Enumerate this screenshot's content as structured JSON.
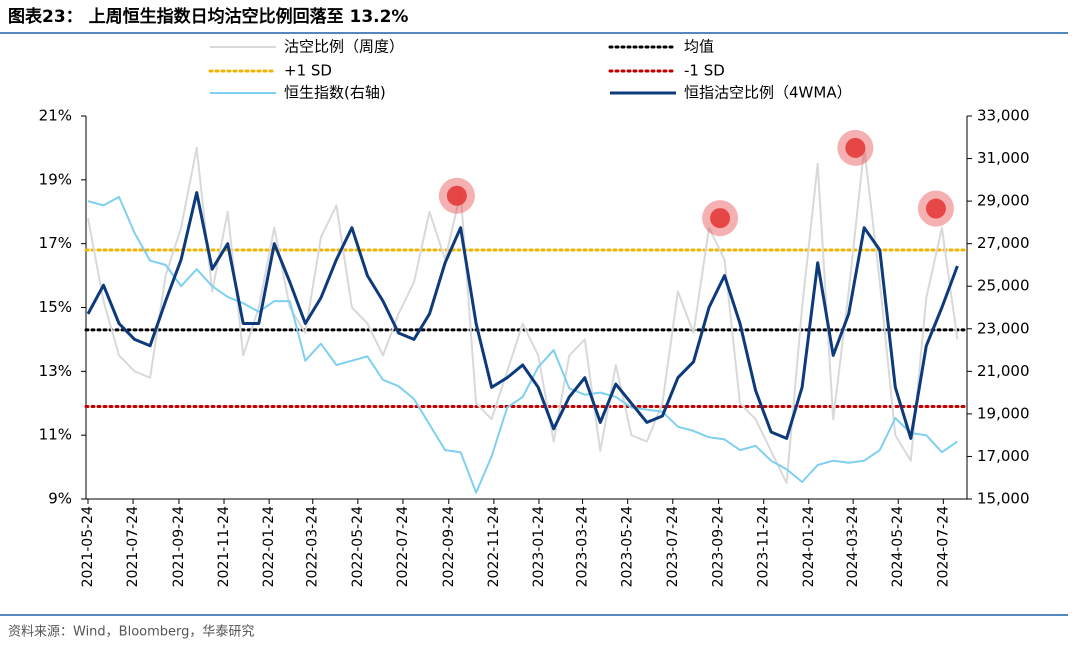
{
  "chart_data": {
    "type": "line",
    "title": "图表23： 上周恒生指数日均沽空比例回落至 13.2%",
    "source": "资料来源：Wind，Bloomberg，华泰研究",
    "x": [
      "2021-05-24",
      "2021-06-14",
      "2021-07-05",
      "2021-07-26",
      "2021-08-16",
      "2021-09-06",
      "2021-09-27",
      "2021-10-18",
      "2021-11-08",
      "2021-11-29",
      "2021-12-20",
      "2022-01-10",
      "2022-01-31",
      "2022-02-21",
      "2022-03-14",
      "2022-04-04",
      "2022-04-25",
      "2022-05-16",
      "2022-06-06",
      "2022-06-27",
      "2022-07-18",
      "2022-08-08",
      "2022-08-29",
      "2022-09-19",
      "2022-10-10",
      "2022-10-31",
      "2022-11-21",
      "2022-12-12",
      "2023-01-02",
      "2023-01-23",
      "2023-02-13",
      "2023-03-06",
      "2023-03-27",
      "2023-04-17",
      "2023-05-08",
      "2023-05-29",
      "2023-06-19",
      "2023-07-10",
      "2023-07-31",
      "2023-08-21",
      "2023-09-11",
      "2023-10-02",
      "2023-10-23",
      "2023-11-13",
      "2023-12-04",
      "2023-12-25",
      "2024-01-15",
      "2024-02-05",
      "2024-02-26",
      "2024-03-18",
      "2024-04-08",
      "2024-04-29",
      "2024-05-20",
      "2024-06-10",
      "2024-07-01",
      "2024-07-22",
      "2024-08-12"
    ],
    "xlim": [
      "2021-05-24",
      "2024-08-25"
    ],
    "xticks": [
      "2021-05-24",
      "2021-07-24",
      "2021-09-24",
      "2021-11-24",
      "2022-01-24",
      "2022-03-24",
      "2022-05-24",
      "2022-07-24",
      "2022-09-24",
      "2022-11-24",
      "2023-01-24",
      "2023-03-24",
      "2023-05-24",
      "2023-07-24",
      "2023-09-24",
      "2023-11-24",
      "2024-01-24",
      "2024-03-24",
      "2024-05-24",
      "2024-07-24"
    ],
    "ylim": [
      9,
      21
    ],
    "yticks": [
      {
        "value": 9,
        "label": "9%"
      },
      {
        "value": 11,
        "label": "11%"
      },
      {
        "value": 13,
        "label": "13%"
      },
      {
        "value": 15,
        "label": "15%"
      },
      {
        "value": 17,
        "label": "17%"
      },
      {
        "value": 19,
        "label": "19%"
      },
      {
        "value": 21,
        "label": "21%"
      }
    ],
    "y2lim": [
      15000,
      33000
    ],
    "y2ticks": [
      {
        "value": 15000,
        "label": "15,000"
      },
      {
        "value": 17000,
        "label": "17,000"
      },
      {
        "value": 19000,
        "label": "19,000"
      },
      {
        "value": 21000,
        "label": "21,000"
      },
      {
        "value": 23000,
        "label": "23,000"
      },
      {
        "value": 25000,
        "label": "25,000"
      },
      {
        "value": 27000,
        "label": "27,000"
      },
      {
        "value": 29000,
        "label": "29,000"
      },
      {
        "value": 31000,
        "label": "31,000"
      },
      {
        "value": 33000,
        "label": "33,000"
      }
    ],
    "series": [
      {
        "name": "沽空比例（周度）",
        "color": "#d9d9d9",
        "width": 2,
        "values": [
          17.8,
          15.2,
          13.5,
          13.0,
          12.8,
          16.0,
          17.5,
          20.0,
          15.5,
          18.0,
          13.5,
          15.0,
          17.5,
          15.0,
          14.2,
          17.2,
          18.2,
          15.0,
          14.5,
          13.5,
          14.8,
          15.8,
          18.0,
          16.5,
          18.6,
          12.0,
          11.5,
          13.0,
          14.5,
          13.5,
          10.8,
          13.5,
          14.0,
          10.5,
          13.2,
          11.0,
          10.8,
          12.0,
          15.5,
          14.2,
          17.5,
          16.5,
          12.0,
          11.5,
          10.5,
          9.5,
          15.0,
          19.5,
          11.5,
          15.5,
          20.0,
          15.8,
          11.0,
          10.2,
          15.3,
          17.5,
          14.0
        ]
      },
      {
        "name": "恒生指数(右轴)",
        "color": "#7fd0f0",
        "width": 2,
        "axis": "y2",
        "values": [
          29000,
          28800,
          29200,
          27500,
          26200,
          26000,
          25000,
          25800,
          25000,
          24500,
          24200,
          23800,
          24300,
          24300,
          21500,
          22300,
          21300,
          21500,
          21700,
          20600,
          20300,
          19700,
          18500,
          17300,
          17200,
          15300,
          17000,
          19300,
          19800,
          21200,
          22000,
          20200,
          19900,
          20000,
          19800,
          19300,
          19200,
          19100,
          18400,
          18200,
          17900,
          17800,
          17300,
          17500,
          16800,
          16400,
          15800,
          16600,
          16800,
          16700,
          16800,
          17300,
          18800,
          18100,
          18000,
          17200,
          17700
        ]
      },
      {
        "name": "恒指沽空比例（4WMA）",
        "color": "#0d3a7a",
        "width": 3,
        "values": [
          14.8,
          15.7,
          14.5,
          14.0,
          13.8,
          15.2,
          16.5,
          18.6,
          16.2,
          17.0,
          14.5,
          14.5,
          17.0,
          15.8,
          14.5,
          15.3,
          16.5,
          17.5,
          16.0,
          15.2,
          14.2,
          14.0,
          14.8,
          16.4,
          17.5,
          14.5,
          12.5,
          12.8,
          13.2,
          12.5,
          11.2,
          12.2,
          12.8,
          11.4,
          12.6,
          12.0,
          11.4,
          11.6,
          12.8,
          13.3,
          15.0,
          16.0,
          14.5,
          12.4,
          11.1,
          10.9,
          12.5,
          16.4,
          13.5,
          14.8,
          17.5,
          16.8,
          12.5,
          10.9,
          13.8,
          15.0,
          16.3
        ]
      }
    ],
    "reference_lines": [
      {
        "name": "均值",
        "value": 14.3,
        "color": "#000000"
      },
      {
        "name": "+1 SD",
        "value": 16.8,
        "color": "#f0b400"
      },
      {
        "name": "-1 SD",
        "value": 11.9,
        "color": "#c00000"
      }
    ],
    "highlights": {
      "color": "#e63b3b",
      "x": [
        "2022-10-05",
        "2023-09-26",
        "2024-03-27",
        "2024-07-14"
      ],
      "values": [
        18.5,
        17.8,
        20.0,
        18.1
      ]
    }
  }
}
